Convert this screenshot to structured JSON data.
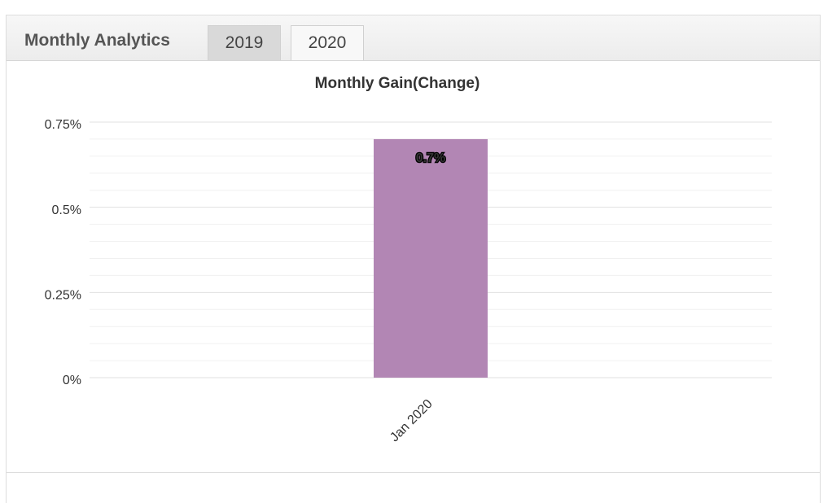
{
  "header": {
    "title": "Monthly Analytics",
    "tabs": [
      "2019",
      "2020"
    ],
    "active_tab": 1
  },
  "chart_data": {
    "type": "bar",
    "title": "Monthly Gain(Change)",
    "categories": [
      "Jan 2020"
    ],
    "values": [
      0.7
    ],
    "value_labels": [
      "0.7%"
    ],
    "color": "#b286b4",
    "ylim": [
      0,
      0.75
    ],
    "yticks": [
      {
        "value": 0,
        "label": "0%"
      },
      {
        "value": 0.25,
        "label": "0.25%"
      },
      {
        "value": 0.5,
        "label": "0.5%"
      },
      {
        "value": 0.75,
        "label": "0.75%"
      }
    ],
    "minor_yticks": [
      0.05,
      0.1,
      0.15,
      0.2,
      0.3,
      0.35,
      0.4,
      0.45,
      0.55,
      0.6,
      0.65,
      0.7
    ],
    "grid": true
  }
}
